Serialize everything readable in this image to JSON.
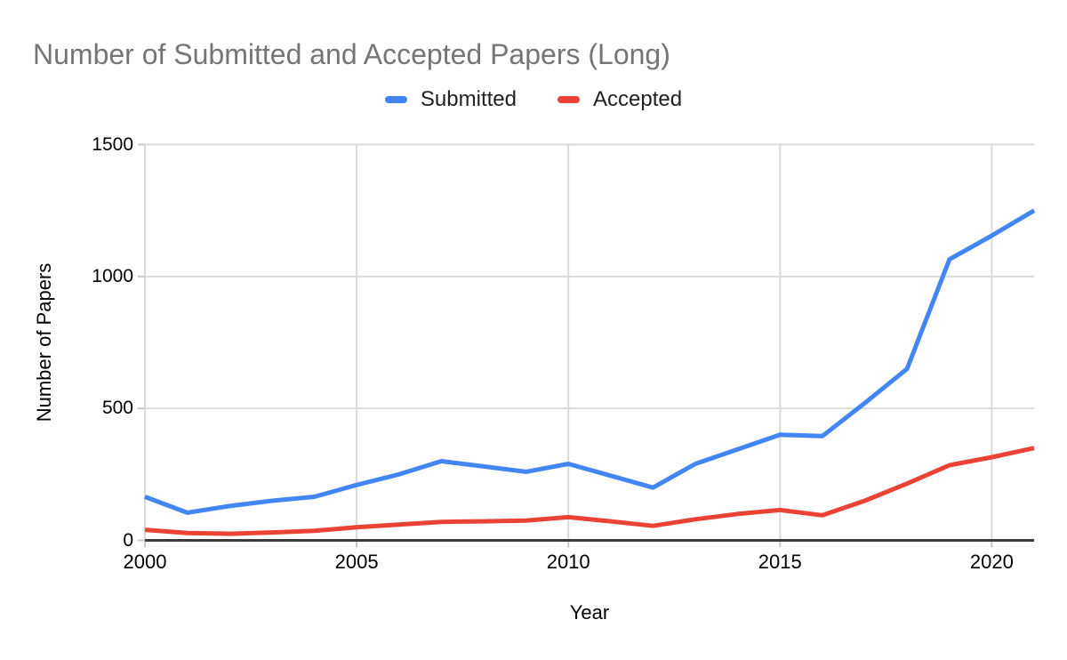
{
  "title": "Number of Submitted and Accepted Papers (Long)",
  "legend": [
    {
      "label": "Submitted",
      "color": "#4285F4"
    },
    {
      "label": "Accepted",
      "color": "#EA4335"
    }
  ],
  "colors": {
    "background": "#ffffff",
    "title_text": "#757575",
    "axis_text": "#000000",
    "gridline": "#d9d9d9",
    "baseline": "#3b3b3b",
    "tick": "#c7c7c7"
  },
  "chart_data": {
    "type": "line",
    "title": "Number of Submitted and Accepted Papers (Long)",
    "xlabel": "Year",
    "ylabel": "Number of Papers",
    "x": [
      2000,
      2001,
      2002,
      2003,
      2004,
      2005,
      2006,
      2007,
      2008,
      2009,
      2010,
      2011,
      2012,
      2013,
      2014,
      2015,
      2016,
      2017,
      2018,
      2019,
      2020,
      2021
    ],
    "series": [
      {
        "name": "Submitted",
        "color": "#4285F4",
        "values": [
          165,
          105,
          130,
          150,
          165,
          210,
          250,
          300,
          280,
          260,
          290,
          245,
          200,
          290,
          345,
          400,
          395,
          520,
          650,
          1065,
          1155,
          1250
        ]
      },
      {
        "name": "Accepted",
        "color": "#EA4335",
        "values": [
          40,
          28,
          25,
          30,
          36,
          50,
          60,
          70,
          72,
          75,
          88,
          72,
          55,
          80,
          100,
          115,
          95,
          150,
          215,
          285,
          315,
          350
        ]
      }
    ],
    "xlim": [
      2000,
      2021
    ],
    "ylim": [
      0,
      1500
    ],
    "x_ticks": [
      2000,
      2005,
      2010,
      2015,
      2020
    ],
    "y_ticks": [
      0,
      500,
      1000,
      1500
    ],
    "grid": true,
    "legend_position": "top-center"
  }
}
